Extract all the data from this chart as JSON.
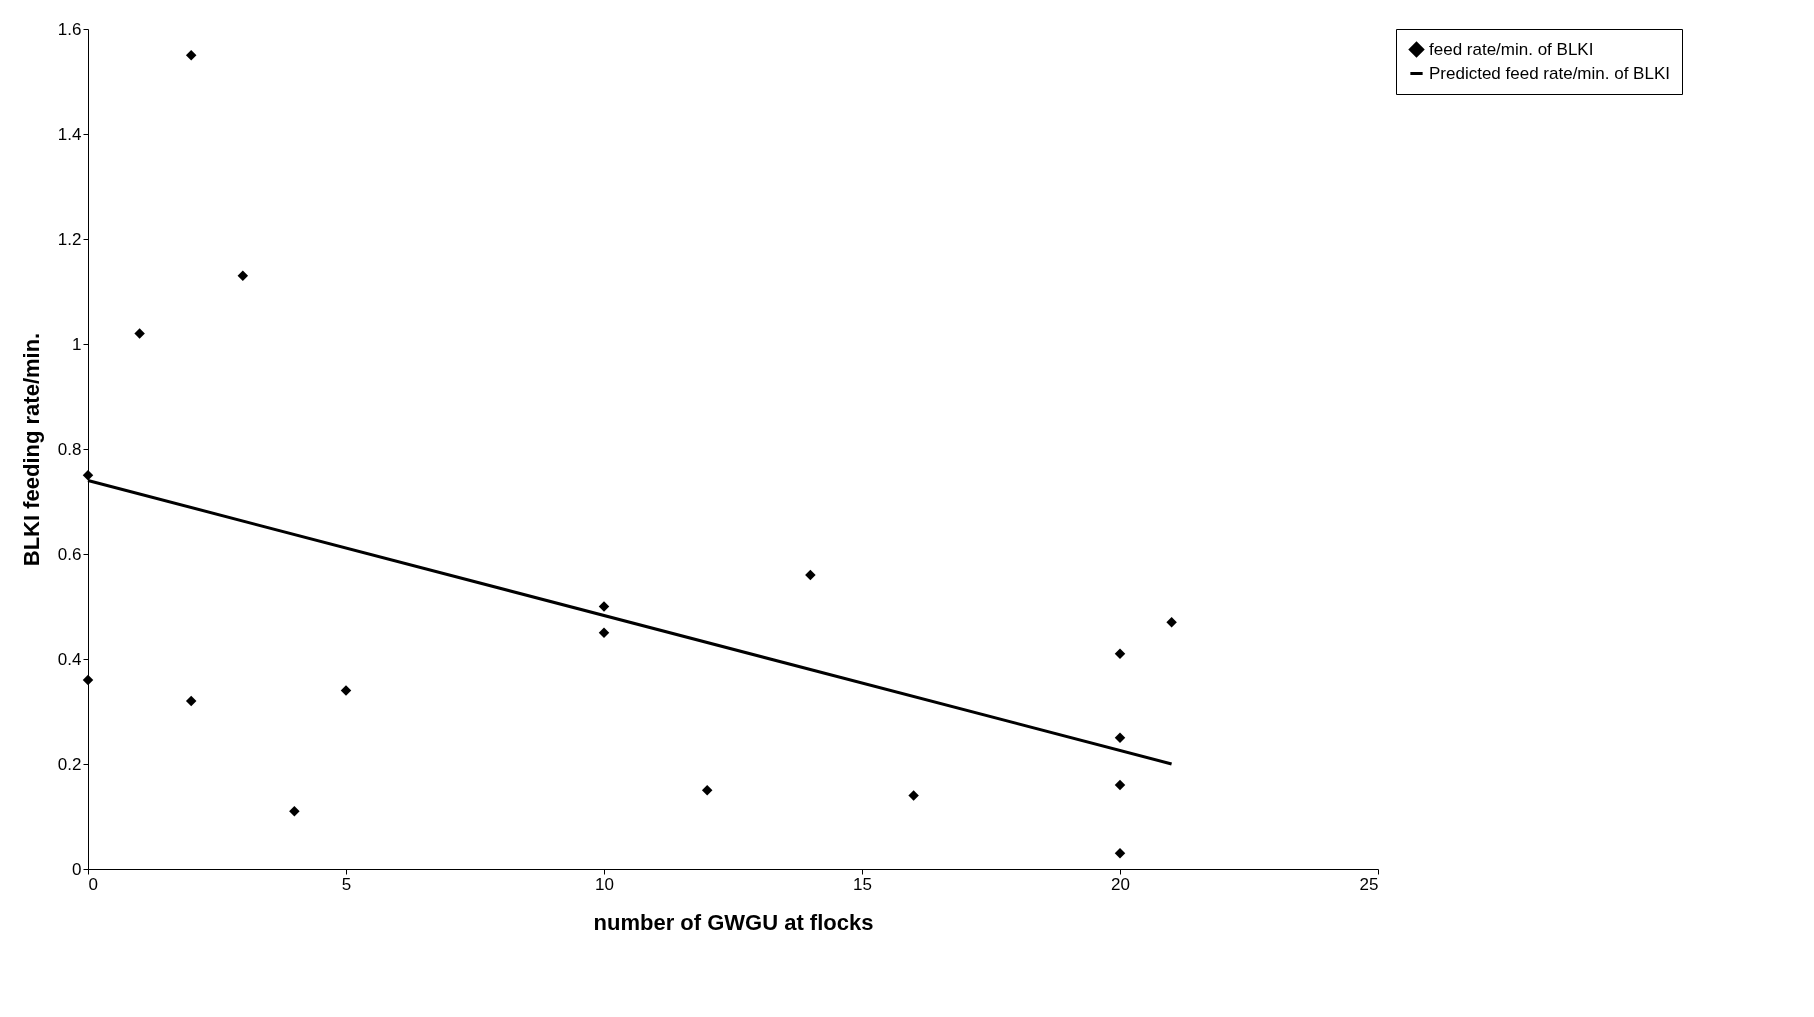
{
  "chart_data": {
    "type": "scatter",
    "xlabel": "number of GWGU at flocks",
    "ylabel": "BLKI feeding rate/min.",
    "xlim": [
      0,
      25
    ],
    "xticks": [
      0,
      5,
      10,
      15,
      20,
      25
    ],
    "ylim": [
      0,
      1.6
    ],
    "yticks": [
      0,
      0.2,
      0.4,
      0.6,
      0.8,
      1,
      1.2,
      1.4,
      1.6
    ],
    "grid": false,
    "legend": "right",
    "series": [
      {
        "name": "feed rate/min. of BLKI",
        "color": "#000000",
        "marker": "diamond",
        "x": [
          0,
          0,
          1,
          2,
          2,
          3,
          4,
          5,
          10,
          10,
          12,
          14,
          16,
          20,
          20,
          20,
          20,
          21
        ],
        "values": [
          0.75,
          0.36,
          1.02,
          1.55,
          0.32,
          1.13,
          0.11,
          0.34,
          0.5,
          0.45,
          0.15,
          0.56,
          0.14,
          0.41,
          0.25,
          0.16,
          0.03,
          0.47
        ]
      },
      {
        "name": "Predicted feed rate/min. of BLKI",
        "color": "#000000",
        "type": "line",
        "marker": "none",
        "line_style": "solid",
        "x": [
          0,
          21
        ],
        "values": [
          0.74,
          0.2
        ]
      }
    ]
  }
}
